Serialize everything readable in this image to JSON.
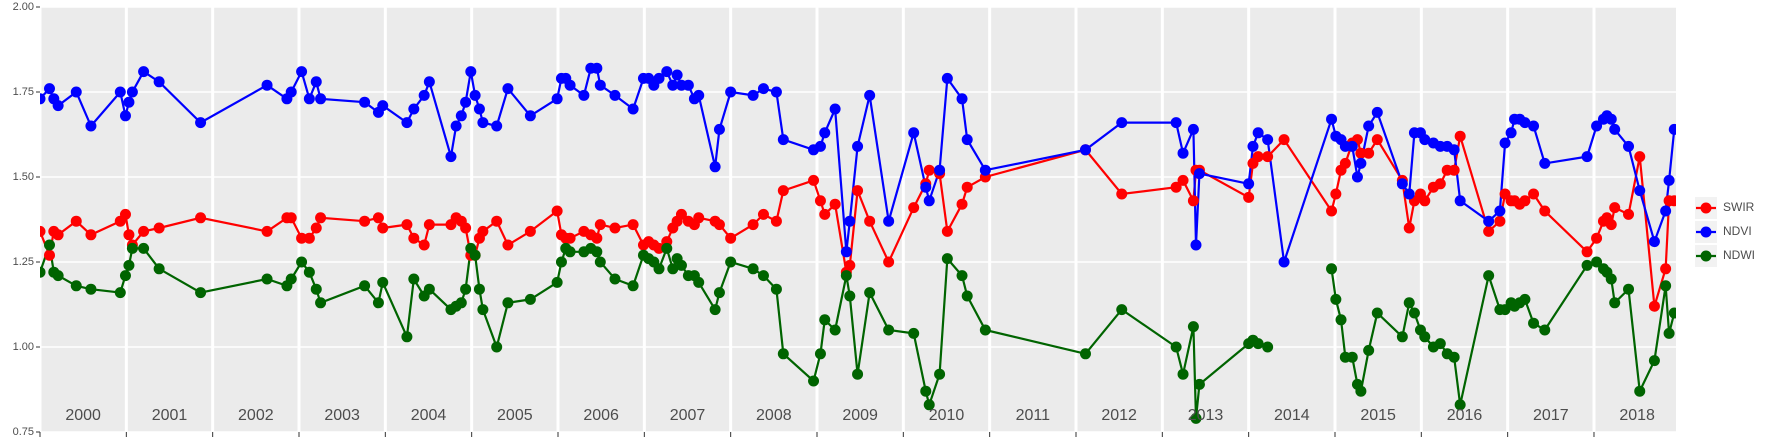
{
  "chart_data": {
    "type": "line",
    "x": [
      2000.0,
      2000.11,
      2000.16,
      2000.21,
      2000.42,
      2000.59,
      2000.93,
      2000.99,
      2001.03,
      2001.07,
      2001.2,
      2001.38,
      2001.86,
      2002.63,
      2002.86,
      2002.91,
      2003.03,
      2003.12,
      2003.2,
      2003.25,
      2003.76,
      2003.92,
      2003.97,
      2004.25,
      2004.33,
      2004.45,
      2004.51,
      2004.76,
      2004.82,
      2004.88,
      2004.93,
      2004.99,
      2005.04,
      2005.09,
      2005.13,
      2005.29,
      2005.42,
      2005.68,
      2005.99,
      2006.04,
      2006.09,
      2006.14,
      2006.3,
      2006.38,
      2006.45,
      2006.49,
      2006.66,
      2006.87,
      2006.99,
      2007.05,
      2007.11,
      2007.17,
      2007.26,
      2007.33,
      2007.38,
      2007.43,
      2007.51,
      2007.58,
      2007.63,
      2007.82,
      2007.87,
      2008.0,
      2008.26,
      2008.38,
      2008.53,
      2008.61,
      2008.96,
      2009.04,
      2009.09,
      2009.21,
      2009.34,
      2009.38,
      2009.47,
      2009.61,
      2009.83,
      2010.12,
      2010.26,
      2010.3,
      2010.42,
      2010.51,
      2010.68,
      2010.74,
      2010.95,
      2012.11,
      2012.53,
      2013.16,
      2013.24,
      2013.36,
      2013.39,
      2013.43,
      2014.0,
      2014.05,
      2014.11,
      2014.22,
      2014.41,
      2014.96,
      2015.01,
      2015.07,
      2015.12,
      2015.2,
      2015.26,
      2015.3,
      2015.39,
      2015.49,
      2015.78,
      2015.86,
      2015.92,
      2015.99,
      2016.04,
      2016.14,
      2016.22,
      2016.3,
      2016.38,
      2016.45,
      2016.78,
      2016.91,
      2016.97,
      2017.04,
      2017.08,
      2017.14,
      2017.2,
      2017.3,
      2017.43,
      2017.92,
      2018.03,
      2018.11,
      2018.15,
      2018.2,
      2018.24,
      2018.4,
      2018.53,
      2018.7,
      2018.83,
      2018.87,
      2018.93
    ],
    "series": [
      {
        "name": "SWIR",
        "color": "#ff0000",
        "values": [
          1.34,
          1.27,
          1.34,
          1.33,
          1.37,
          1.33,
          1.37,
          1.39,
          1.33,
          1.3,
          1.34,
          1.35,
          1.38,
          1.34,
          1.38,
          1.38,
          1.32,
          1.32,
          1.35,
          1.38,
          1.37,
          1.38,
          1.35,
          1.36,
          1.32,
          1.3,
          1.36,
          1.36,
          1.38,
          1.37,
          1.35,
          1.27,
          1.27,
          1.32,
          1.34,
          1.37,
          1.3,
          1.34,
          1.4,
          1.33,
          1.32,
          1.32,
          1.34,
          1.33,
          1.32,
          1.36,
          1.35,
          1.36,
          1.3,
          1.31,
          1.3,
          1.29,
          1.31,
          1.35,
          1.37,
          1.39,
          1.37,
          1.36,
          1.38,
          1.37,
          1.36,
          1.32,
          1.36,
          1.39,
          1.37,
          1.46,
          1.49,
          1.43,
          1.39,
          1.42,
          1.22,
          1.24,
          1.46,
          1.37,
          1.25,
          1.41,
          1.48,
          1.52,
          1.51,
          1.34,
          1.42,
          1.47,
          1.5,
          1.58,
          1.45,
          1.47,
          1.49,
          1.43,
          1.52,
          1.52,
          1.44,
          1.54,
          1.56,
          1.56,
          1.61,
          1.4,
          1.45,
          1.52,
          1.54,
          1.6,
          1.61,
          1.57,
          1.57,
          1.61,
          1.49,
          1.35,
          1.43,
          1.45,
          1.43,
          1.47,
          1.48,
          1.52,
          1.52,
          1.62,
          1.34,
          1.37,
          1.45,
          1.43,
          1.43,
          1.42,
          1.43,
          1.45,
          1.4,
          1.28,
          1.32,
          1.37,
          1.38,
          1.36,
          1.41,
          1.39,
          1.56,
          1.12,
          1.23,
          1.43,
          1.43
        ]
      },
      {
        "name": "NDVI",
        "color": "#0000ff",
        "values": [
          1.73,
          1.76,
          1.73,
          1.71,
          1.75,
          1.65,
          1.75,
          1.68,
          1.72,
          1.75,
          1.81,
          1.78,
          1.66,
          1.77,
          1.73,
          1.75,
          1.81,
          1.73,
          1.78,
          1.73,
          1.72,
          1.69,
          1.71,
          1.66,
          1.7,
          1.74,
          1.78,
          1.56,
          1.65,
          1.68,
          1.72,
          1.81,
          1.74,
          1.7,
          1.66,
          1.65,
          1.76,
          1.68,
          1.73,
          1.79,
          1.79,
          1.77,
          1.74,
          1.82,
          1.82,
          1.77,
          1.74,
          1.7,
          1.79,
          1.79,
          1.77,
          1.79,
          1.81,
          1.77,
          1.8,
          1.77,
          1.77,
          1.73,
          1.74,
          1.53,
          1.64,
          1.75,
          1.74,
          1.76,
          1.75,
          1.61,
          1.58,
          1.59,
          1.63,
          1.7,
          1.28,
          1.37,
          1.59,
          1.74,
          1.37,
          1.63,
          1.47,
          1.43,
          1.52,
          1.79,
          1.73,
          1.61,
          1.52,
          1.58,
          1.66,
          1.66,
          1.57,
          1.64,
          1.3,
          1.51,
          1.48,
          1.59,
          1.63,
          1.61,
          1.25,
          1.67,
          1.62,
          1.61,
          1.59,
          1.59,
          1.5,
          1.54,
          1.65,
          1.69,
          1.48,
          1.45,
          1.63,
          1.63,
          1.61,
          1.6,
          1.59,
          1.59,
          1.58,
          1.43,
          1.37,
          1.4,
          1.6,
          1.63,
          1.67,
          1.67,
          1.66,
          1.65,
          1.54,
          1.56,
          1.65,
          1.67,
          1.68,
          1.67,
          1.64,
          1.59,
          1.46,
          1.31,
          1.4,
          1.49,
          1.64
        ]
      },
      {
        "name": "NDWI",
        "color": "#006400",
        "values": [
          1.22,
          1.3,
          1.22,
          1.21,
          1.18,
          1.17,
          1.16,
          1.21,
          1.24,
          1.29,
          1.29,
          1.23,
          1.16,
          1.2,
          1.18,
          1.2,
          1.25,
          1.22,
          1.17,
          1.13,
          1.18,
          1.13,
          1.19,
          1.03,
          1.2,
          1.15,
          1.17,
          1.11,
          1.12,
          1.13,
          1.17,
          1.29,
          1.27,
          1.17,
          1.11,
          1.0,
          1.13,
          1.14,
          1.19,
          1.25,
          1.29,
          1.28,
          1.28,
          1.29,
          1.28,
          1.25,
          1.2,
          1.18,
          1.27,
          1.26,
          1.25,
          1.23,
          1.29,
          1.23,
          1.26,
          1.24,
          1.21,
          1.21,
          1.19,
          1.11,
          1.16,
          1.25,
          1.23,
          1.21,
          1.17,
          0.98,
          0.9,
          0.98,
          1.08,
          1.05,
          1.21,
          1.15,
          0.92,
          1.16,
          1.05,
          1.04,
          0.87,
          0.83,
          0.92,
          1.26,
          1.21,
          1.15,
          1.05,
          0.98,
          1.11,
          1.0,
          0.92,
          1.06,
          0.79,
          0.89,
          1.01,
          1.02,
          1.01,
          1.0,
          null,
          1.23,
          1.14,
          1.08,
          0.97,
          0.97,
          0.89,
          0.87,
          0.99,
          1.1,
          1.03,
          1.13,
          1.1,
          1.05,
          1.03,
          1.0,
          1.01,
          0.98,
          0.97,
          0.83,
          1.21,
          1.11,
          1.11,
          1.13,
          1.12,
          1.13,
          1.14,
          1.07,
          1.05,
          1.24,
          1.25,
          1.23,
          1.22,
          1.2,
          1.13,
          1.17,
          0.87,
          0.96,
          1.18,
          1.04,
          1.1
        ]
      }
    ],
    "xlim": [
      2000,
      2018.95
    ],
    "xticks": [
      2000,
      2001,
      2002,
      2003,
      2004,
      2005,
      2006,
      2007,
      2008,
      2009,
      2010,
      2011,
      2012,
      2013,
      2014,
      2015,
      2016,
      2017,
      2018
    ],
    "ylim": [
      0.75,
      2.0
    ],
    "yticks": [
      {
        "value": 0.75,
        "label": "0.75"
      },
      {
        "value": 1,
        "label": "1.00"
      },
      {
        "value": 1.25,
        "label": "1.25"
      },
      {
        "value": 1.5,
        "label": "1.50"
      },
      {
        "value": 1.75,
        "label": "1.75"
      },
      {
        "value": 2,
        "label": "2.00"
      }
    ],
    "grid": true,
    "legend": "right"
  }
}
